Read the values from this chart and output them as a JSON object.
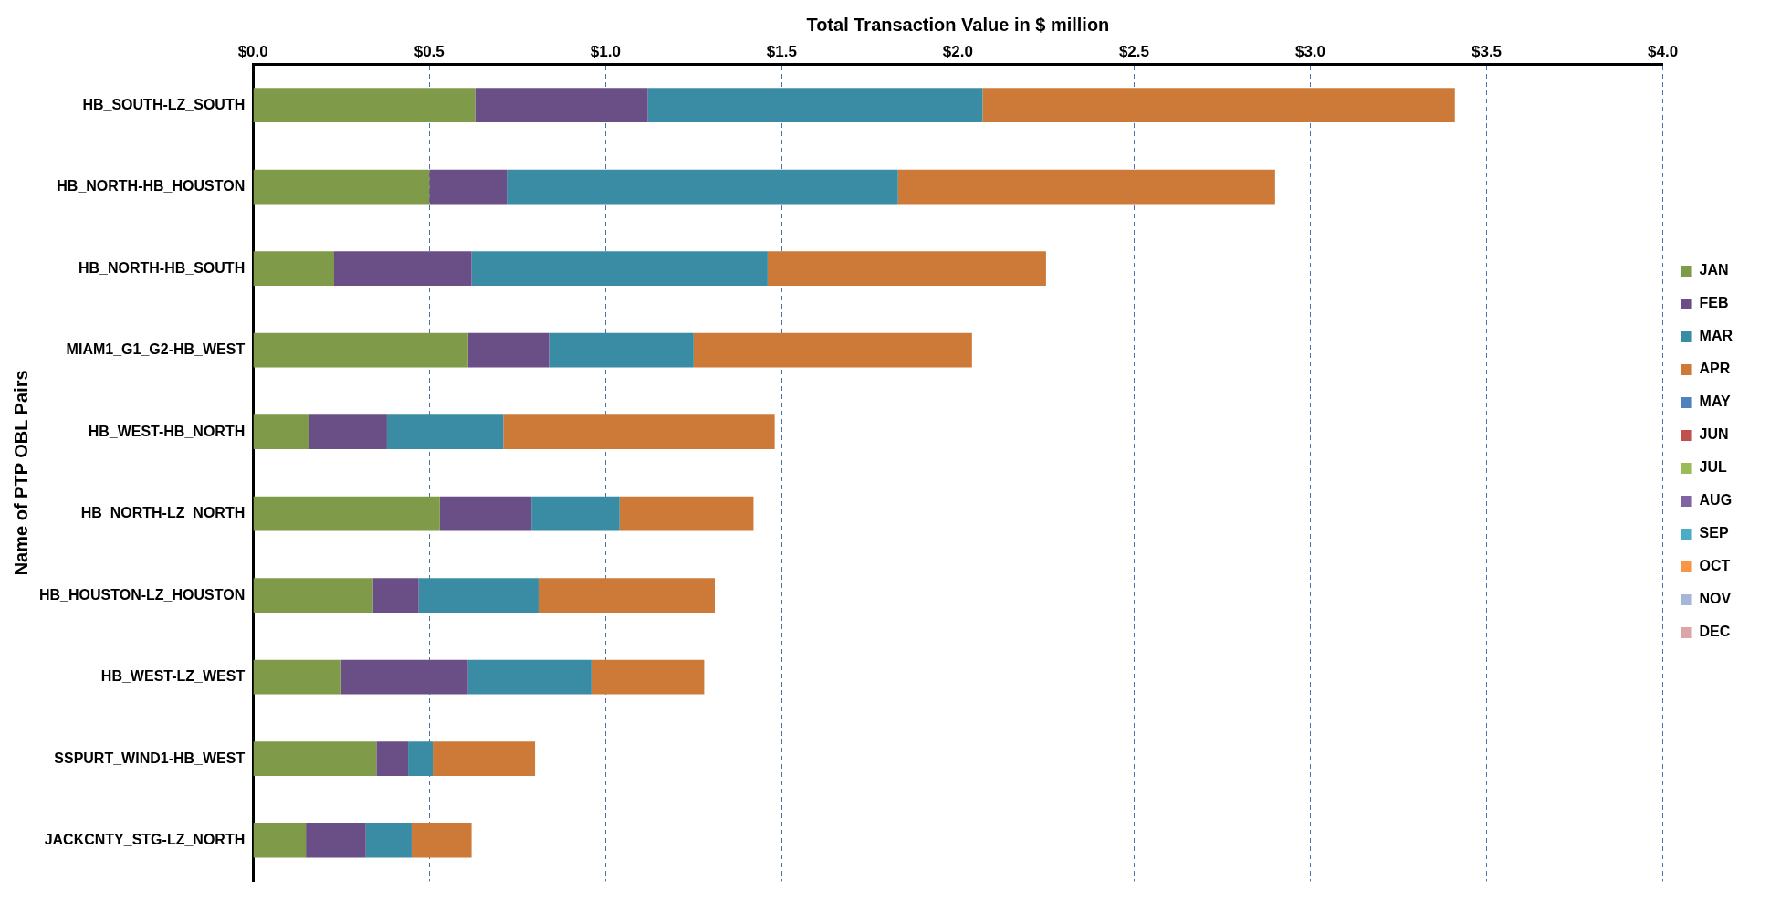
{
  "chart_data": {
    "type": "bar",
    "orientation": "horizontal",
    "stacked": true,
    "xlabel": "Total Transaction Value in $ million",
    "ylabel": "Name of PTP OBL Pairs",
    "categories": [
      "HB_SOUTH-LZ_SOUTH",
      "HB_NORTH-HB_HOUSTON",
      "HB_NORTH-HB_SOUTH",
      "MIAM1_G1_G2-HB_WEST",
      "HB_WEST-HB_NORTH",
      "HB_NORTH-LZ_NORTH",
      "HB_HOUSTON-LZ_HOUSTON",
      "HB_WEST-LZ_WEST",
      "SSPURT_WIND1-HB_WEST",
      "JACKCNTY_STG-LZ_NORTH"
    ],
    "series": [
      {
        "name": "JAN",
        "color": "#7f9a48",
        "values": [
          0.63,
          0.5,
          0.23,
          0.61,
          0.16,
          0.53,
          0.34,
          0.25,
          0.35,
          0.15
        ]
      },
      {
        "name": "FEB",
        "color": "#6a4e86",
        "values": [
          0.49,
          0.22,
          0.39,
          0.23,
          0.22,
          0.26,
          0.13,
          0.36,
          0.09,
          0.17
        ]
      },
      {
        "name": "MAR",
        "color": "#3a8ca4",
        "values": [
          0.95,
          1.11,
          0.84,
          0.41,
          0.33,
          0.25,
          0.34,
          0.35,
          0.07,
          0.13
        ]
      },
      {
        "name": "APR",
        "color": "#cd7a38",
        "values": [
          1.34,
          1.07,
          0.79,
          0.79,
          0.77,
          0.38,
          0.5,
          0.32,
          0.29,
          0.17
        ]
      },
      {
        "name": "MAY",
        "color": "#4f81bd",
        "values": [
          null,
          null,
          null,
          null,
          null,
          null,
          null,
          null,
          null,
          null
        ]
      },
      {
        "name": "JUN",
        "color": "#c0504d",
        "values": [
          null,
          null,
          null,
          null,
          null,
          null,
          null,
          null,
          null,
          null
        ]
      },
      {
        "name": "JUL",
        "color": "#9bbb59",
        "values": [
          null,
          null,
          null,
          null,
          null,
          null,
          null,
          null,
          null,
          null
        ]
      },
      {
        "name": "AUG",
        "color": "#8064a2",
        "values": [
          null,
          null,
          null,
          null,
          null,
          null,
          null,
          null,
          null,
          null
        ]
      },
      {
        "name": "SEP",
        "color": "#4bacc6",
        "values": [
          null,
          null,
          null,
          null,
          null,
          null,
          null,
          null,
          null,
          null
        ]
      },
      {
        "name": "OCT",
        "color": "#f79646",
        "values": [
          null,
          null,
          null,
          null,
          null,
          null,
          null,
          null,
          null,
          null
        ]
      },
      {
        "name": "NOV",
        "color": "#a5b6d6",
        "values": [
          null,
          null,
          null,
          null,
          null,
          null,
          null,
          null,
          null,
          null
        ]
      },
      {
        "name": "DEC",
        "color": "#dba6a6",
        "values": [
          null,
          null,
          null,
          null,
          null,
          null,
          null,
          null,
          null,
          null
        ]
      }
    ],
    "xlim": [
      0,
      4
    ],
    "xticks": [
      {
        "value": 0,
        "label": "$0.0"
      },
      {
        "value": 0.5,
        "label": "$0.5"
      },
      {
        "value": 1,
        "label": "$1.0"
      },
      {
        "value": 1.5,
        "label": "$1.5"
      },
      {
        "value": 2,
        "label": "$2.0"
      },
      {
        "value": 2.5,
        "label": "$2.5"
      },
      {
        "value": 3,
        "label": "$3.0"
      },
      {
        "value": 3.5,
        "label": "$3.5"
      },
      {
        "value": 4,
        "label": "$4.0"
      }
    ],
    "grid": "x",
    "legend": "right"
  }
}
